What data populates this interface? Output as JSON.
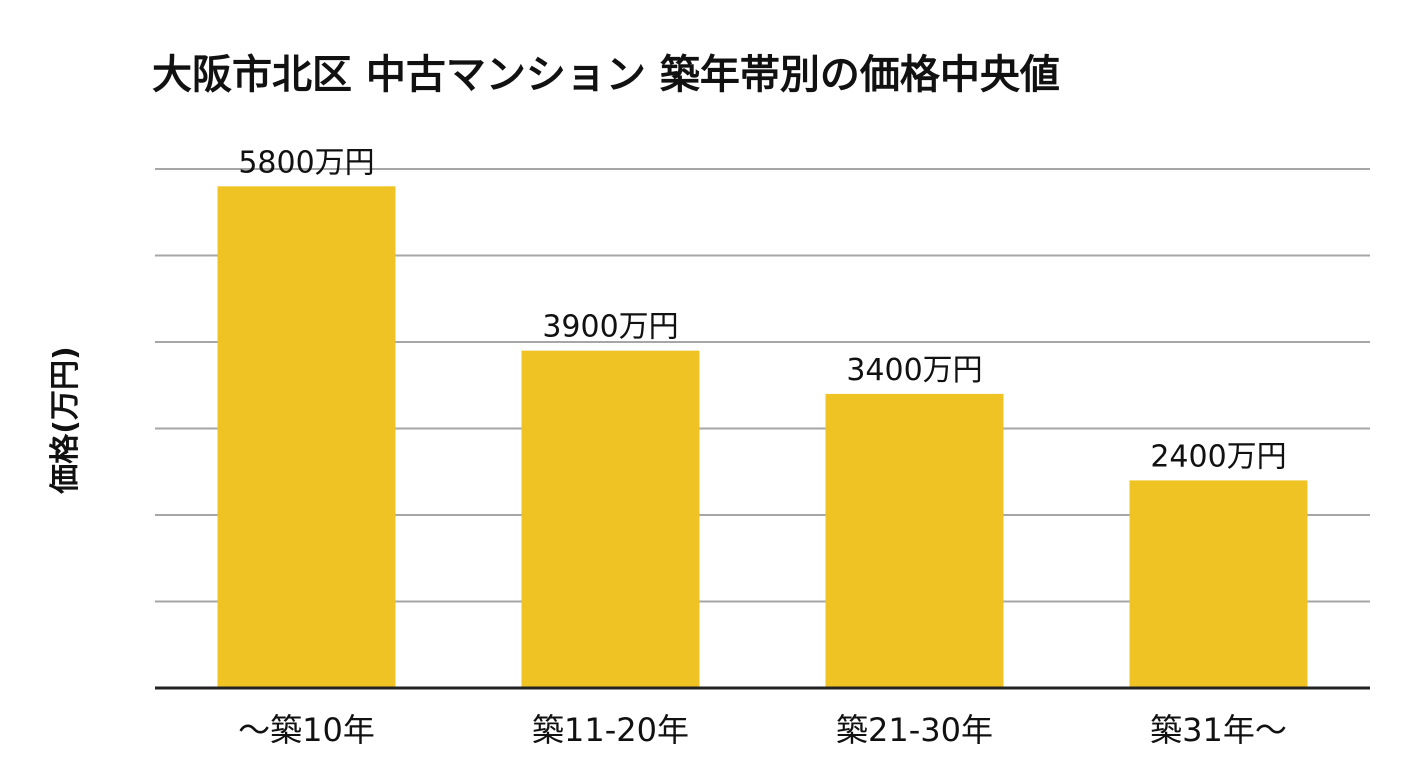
{
  "chart_data": {
    "type": "bar",
    "title": "大阪市北区 中古マンション 築年帯別の価格中央値",
    "xlabel": "",
    "ylabel": "価格(万円)",
    "categories": [
      "〜築10年",
      "築11-20年",
      "築21-30年",
      "築31年〜"
    ],
    "values": [
      5800,
      3900,
      3400,
      2400
    ],
    "data_labels": [
      "5800万円",
      "3900万円",
      "3400万円",
      "2400万円"
    ],
    "ylim": [
      0,
      6000
    ],
    "grid": true,
    "legend": "none",
    "colors": {
      "bar": "#F0C325",
      "grid": "#A6A6A6",
      "axis": "#222222",
      "text": "#111111"
    }
  }
}
